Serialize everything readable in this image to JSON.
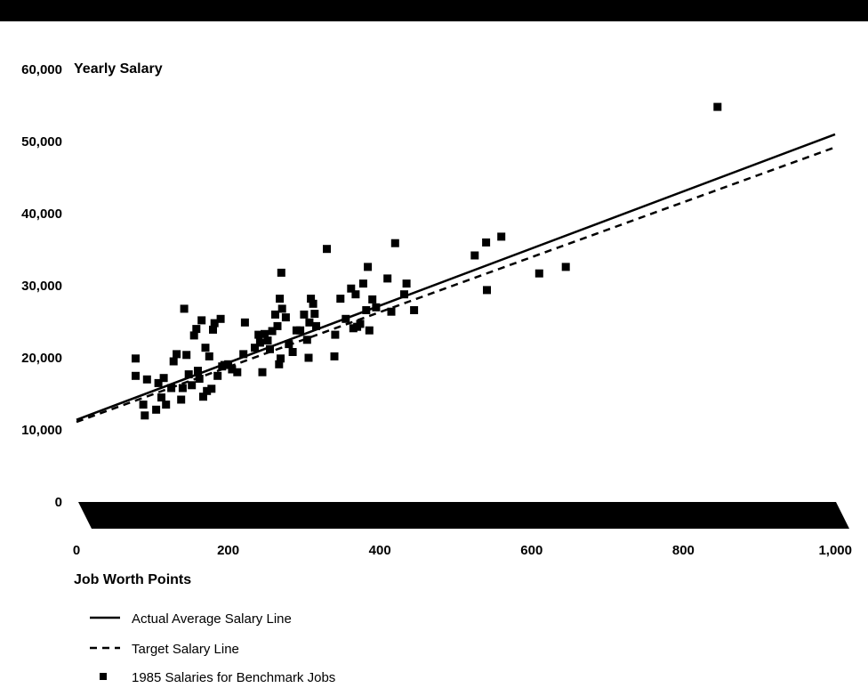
{
  "chart_data": {
    "type": "scatter",
    "title": "",
    "xlabel": "Job Worth Points",
    "ylabel": "Yearly Salary",
    "xlim": [
      0,
      1000
    ],
    "ylim": [
      0,
      60000
    ],
    "x_ticks": [
      "0",
      "200",
      "400",
      "600",
      "800",
      "1,000"
    ],
    "y_ticks": [
      "0",
      "10,000",
      "20,000",
      "30,000",
      "40,000",
      "50,000",
      "60,000"
    ],
    "grid": false,
    "legend_position": "bottom-left",
    "lines": [
      {
        "name": "Actual Average Salary Line",
        "style": "solid",
        "x": [
          0,
          1000
        ],
        "y": [
          11400,
          51000
        ]
      },
      {
        "name": "Target Salary Line",
        "style": "dashed",
        "x": [
          0,
          1000
        ],
        "y": [
          11100,
          49200
        ]
      }
    ],
    "series": [
      {
        "name": "1985 Salaries for Benchmark Jobs",
        "marker": "square",
        "points": [
          [
            78,
            19900
          ],
          [
            78,
            17500
          ],
          [
            88,
            13500
          ],
          [
            90,
            12000
          ],
          [
            93,
            17000
          ],
          [
            105,
            12800
          ],
          [
            108,
            16500
          ],
          [
            112,
            14500
          ],
          [
            115,
            17200
          ],
          [
            118,
            13500
          ],
          [
            125,
            15800
          ],
          [
            128,
            19500
          ],
          [
            132,
            20500
          ],
          [
            138,
            14200
          ],
          [
            140,
            15800
          ],
          [
            142,
            26800
          ],
          [
            145,
            20400
          ],
          [
            148,
            17700
          ],
          [
            152,
            16200
          ],
          [
            155,
            23100
          ],
          [
            158,
            24000
          ],
          [
            160,
            18200
          ],
          [
            162,
            17100
          ],
          [
            165,
            25200
          ],
          [
            167,
            14600
          ],
          [
            170,
            21400
          ],
          [
            172,
            15400
          ],
          [
            175,
            20200
          ],
          [
            178,
            15700
          ],
          [
            180,
            23900
          ],
          [
            182,
            24800
          ],
          [
            186,
            17500
          ],
          [
            190,
            25400
          ],
          [
            192,
            18800
          ],
          [
            195,
            19000
          ],
          [
            200,
            19100
          ],
          [
            205,
            18400
          ],
          [
            212,
            18000
          ],
          [
            220,
            20500
          ],
          [
            222,
            24900
          ],
          [
            235,
            21400
          ],
          [
            240,
            23200
          ],
          [
            242,
            22100
          ],
          [
            245,
            18000
          ],
          [
            248,
            23300
          ],
          [
            252,
            22400
          ],
          [
            255,
            21200
          ],
          [
            258,
            23700
          ],
          [
            262,
            26000
          ],
          [
            265,
            24400
          ],
          [
            267,
            19100
          ],
          [
            268,
            28200
          ],
          [
            269,
            19900
          ],
          [
            270,
            31800
          ],
          [
            271,
            26800
          ],
          [
            276,
            25600
          ],
          [
            280,
            21900
          ],
          [
            285,
            20800
          ],
          [
            290,
            23800
          ],
          [
            295,
            23800
          ],
          [
            300,
            26000
          ],
          [
            304,
            22500
          ],
          [
            306,
            20000
          ],
          [
            307,
            24900
          ],
          [
            309,
            28200
          ],
          [
            312,
            27500
          ],
          [
            314,
            26100
          ],
          [
            316,
            24400
          ],
          [
            330,
            35100
          ],
          [
            340,
            20200
          ],
          [
            341,
            23200
          ],
          [
            348,
            28200
          ],
          [
            355,
            25400
          ],
          [
            362,
            29600
          ],
          [
            365,
            24100
          ],
          [
            368,
            28800
          ],
          [
            370,
            24300
          ],
          [
            374,
            24700
          ],
          [
            378,
            30300
          ],
          [
            382,
            26600
          ],
          [
            384,
            32600
          ],
          [
            386,
            23800
          ],
          [
            390,
            28100
          ],
          [
            395,
            27000
          ],
          [
            410,
            31000
          ],
          [
            415,
            26400
          ],
          [
            420,
            35900
          ],
          [
            432,
            28800
          ],
          [
            435,
            30300
          ],
          [
            445,
            26600
          ],
          [
            525,
            34200
          ],
          [
            540,
            36000
          ],
          [
            541,
            29400
          ],
          [
            560,
            36800
          ],
          [
            610,
            31700
          ],
          [
            645,
            32600
          ],
          [
            845,
            54800
          ]
        ]
      }
    ]
  }
}
